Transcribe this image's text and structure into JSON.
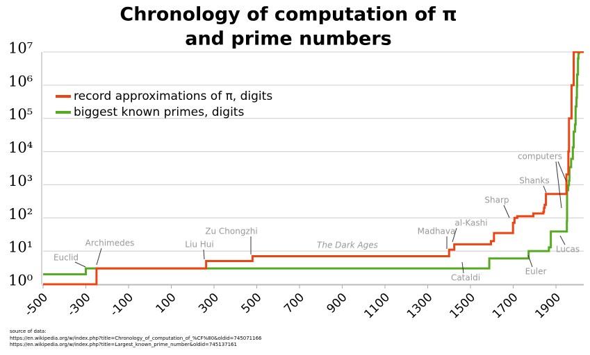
{
  "chart_data": {
    "type": "step-line",
    "title": [
      "Chronology of computation of π",
      "and prime numbers"
    ],
    "log_y": true,
    "xlim": [
      -500,
      2030
    ],
    "ylim": [
      1,
      10000000
    ],
    "xticks": [
      -500,
      -300,
      -100,
      100,
      300,
      500,
      700,
      900,
      1100,
      1300,
      1500,
      1700,
      1900
    ],
    "yticks": [
      {
        "value": 1,
        "label": "10⁰"
      },
      {
        "value": 10,
        "label": "10¹"
      },
      {
        "value": 100,
        "label": "10²"
      },
      {
        "value": 1000,
        "label": "10³"
      },
      {
        "value": 10000,
        "label": "10⁴"
      },
      {
        "value": 100000,
        "label": "10⁵"
      },
      {
        "value": 1000000,
        "label": "10⁶"
      },
      {
        "value": 10000000,
        "label": "10⁷"
      }
    ],
    "grid": true,
    "legend": "upper left",
    "series": [
      {
        "name": "record approximations of π, digits",
        "color": "#ee4411",
        "x": [
          -500,
          -250,
          263,
          480,
          1400,
          1424,
          1596,
          1610,
          1699,
          1706,
          1719,
          1794,
          1841,
          1844,
          1847,
          1853,
          1949,
          1958,
          1961,
          1973,
          1983
        ],
        "values": [
          1,
          3,
          5,
          7,
          11,
          16,
          20,
          35,
          71,
          100,
          112,
          136,
          152,
          200,
          248,
          527,
          2037,
          10000,
          100000,
          1000000,
          10000000
        ]
      },
      {
        "name": "biggest known primes, digits",
        "color": "#55aa22",
        "x": [
          -500,
          -300,
          1588,
          1772,
          1867,
          1876,
          1951,
          1952,
          1957,
          1961,
          1963,
          1971,
          1979,
          1983,
          1989,
          1992,
          1996,
          1998,
          1999,
          2003,
          2005,
          2008
        ],
        "values": [
          2,
          3,
          6,
          10,
          13,
          39,
          79,
          687,
          969,
          1332,
          3376,
          6002,
          13395,
          39751,
          65087,
          227832,
          420921,
          909526,
          2098960,
          6320430,
          9152052,
          12978189
        ]
      }
    ],
    "annotations": [
      "Euclid",
      "Archimedes",
      "Liu Hui",
      "Zu Chongzhi",
      "The Dark Ages",
      "Madhava",
      "al-Kashi",
      "Sharp",
      "Shanks",
      "computers",
      "Cataldi",
      "Euler",
      "Lucas"
    ],
    "source": [
      "source of data:",
      "https://en.wikipedia.org/w/index.php?title=Chronology_of_computation_of_%CF%80&oldid=745071166",
      "https://en.wikipedia.org/w/index.php?title=Largest_known_prime_number&oldid=745137161"
    ]
  }
}
